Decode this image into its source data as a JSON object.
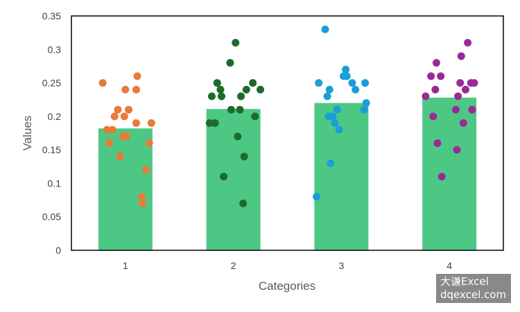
{
  "chart_data": {
    "type": "bar",
    "categories": [
      "1",
      "2",
      "3",
      "4"
    ],
    "values": [
      0.182,
      0.211,
      0.22,
      0.228
    ],
    "bar_color": "#4dc884",
    "xlabel": "Categories",
    "ylabel": "Values",
    "ylim": [
      0,
      0.35
    ],
    "y_ticks": [
      "0",
      "0.05",
      "0.1",
      "0.15",
      "0.2",
      "0.25",
      "0.3",
      "0.35"
    ],
    "grid": false,
    "legend": "none",
    "scatter_series": [
      {
        "category": "1",
        "color": "#e87a3a",
        "points": [
          {
            "x": 0.79,
            "y": 0.25
          },
          {
            "x": 0.83,
            "y": 0.18
          },
          {
            "x": 0.85,
            "y": 0.16
          },
          {
            "x": 0.88,
            "y": 0.18
          },
          {
            "x": 0.9,
            "y": 0.2
          },
          {
            "x": 0.93,
            "y": 0.21
          },
          {
            "x": 0.95,
            "y": 0.14
          },
          {
            "x": 0.98,
            "y": 0.17
          },
          {
            "x": 0.99,
            "y": 0.2
          },
          {
            "x": 1.0,
            "y": 0.24
          },
          {
            "x": 1.01,
            "y": 0.17
          },
          {
            "x": 1.03,
            "y": 0.21
          },
          {
            "x": 1.1,
            "y": 0.24
          },
          {
            "x": 1.11,
            "y": 0.26
          },
          {
            "x": 1.1,
            "y": 0.19
          },
          {
            "x": 1.15,
            "y": 0.08
          },
          {
            "x": 1.16,
            "y": 0.07
          },
          {
            "x": 1.19,
            "y": 0.12
          },
          {
            "x": 1.22,
            "y": 0.16
          },
          {
            "x": 1.24,
            "y": 0.19
          }
        ]
      },
      {
        "category": "2",
        "color": "#1d6b2a",
        "points": [
          {
            "x": 1.78,
            "y": 0.19
          },
          {
            "x": 1.83,
            "y": 0.19
          },
          {
            "x": 1.8,
            "y": 0.23
          },
          {
            "x": 1.85,
            "y": 0.25
          },
          {
            "x": 1.88,
            "y": 0.24
          },
          {
            "x": 1.89,
            "y": 0.23
          },
          {
            "x": 1.91,
            "y": 0.11
          },
          {
            "x": 1.97,
            "y": 0.28
          },
          {
            "x": 1.98,
            "y": 0.21
          },
          {
            "x": 2.02,
            "y": 0.31
          },
          {
            "x": 2.04,
            "y": 0.17
          },
          {
            "x": 2.06,
            "y": 0.21
          },
          {
            "x": 2.07,
            "y": 0.23
          },
          {
            "x": 2.09,
            "y": 0.07
          },
          {
            "x": 2.1,
            "y": 0.14
          },
          {
            "x": 2.12,
            "y": 0.24
          },
          {
            "x": 2.18,
            "y": 0.25
          },
          {
            "x": 2.2,
            "y": 0.2
          },
          {
            "x": 2.25,
            "y": 0.24
          }
        ]
      },
      {
        "category": "3",
        "color": "#1b9ed8",
        "points": [
          {
            "x": 2.77,
            "y": 0.08
          },
          {
            "x": 2.79,
            "y": 0.25
          },
          {
            "x": 2.85,
            "y": 0.33
          },
          {
            "x": 2.87,
            "y": 0.23
          },
          {
            "x": 2.88,
            "y": 0.2
          },
          {
            "x": 2.89,
            "y": 0.24
          },
          {
            "x": 2.9,
            "y": 0.13
          },
          {
            "x": 2.92,
            "y": 0.2
          },
          {
            "x": 2.94,
            "y": 0.19
          },
          {
            "x": 2.96,
            "y": 0.21
          },
          {
            "x": 2.98,
            "y": 0.18
          },
          {
            "x": 3.02,
            "y": 0.26
          },
          {
            "x": 3.04,
            "y": 0.27
          },
          {
            "x": 3.05,
            "y": 0.26
          },
          {
            "x": 3.1,
            "y": 0.25
          },
          {
            "x": 3.13,
            "y": 0.24
          },
          {
            "x": 3.21,
            "y": 0.21
          },
          {
            "x": 3.22,
            "y": 0.25
          },
          {
            "x": 3.23,
            "y": 0.22
          }
        ]
      },
      {
        "category": "4",
        "color": "#9a2a98",
        "points": [
          {
            "x": 3.78,
            "y": 0.23
          },
          {
            "x": 3.83,
            "y": 0.26
          },
          {
            "x": 3.85,
            "y": 0.2
          },
          {
            "x": 3.87,
            "y": 0.24
          },
          {
            "x": 3.88,
            "y": 0.28
          },
          {
            "x": 3.89,
            "y": 0.16
          },
          {
            "x": 3.92,
            "y": 0.26
          },
          {
            "x": 3.93,
            "y": 0.11
          },
          {
            "x": 4.06,
            "y": 0.21
          },
          {
            "x": 4.07,
            "y": 0.15
          },
          {
            "x": 4.08,
            "y": 0.23
          },
          {
            "x": 4.1,
            "y": 0.25
          },
          {
            "x": 4.11,
            "y": 0.29
          },
          {
            "x": 4.13,
            "y": 0.19
          },
          {
            "x": 4.15,
            "y": 0.24
          },
          {
            "x": 4.17,
            "y": 0.31
          },
          {
            "x": 4.2,
            "y": 0.25
          },
          {
            "x": 4.21,
            "y": 0.21
          },
          {
            "x": 4.23,
            "y": 0.25
          }
        ]
      }
    ]
  },
  "watermark": {
    "line1": "大谦Excel",
    "line2": "dqexcel.com"
  }
}
